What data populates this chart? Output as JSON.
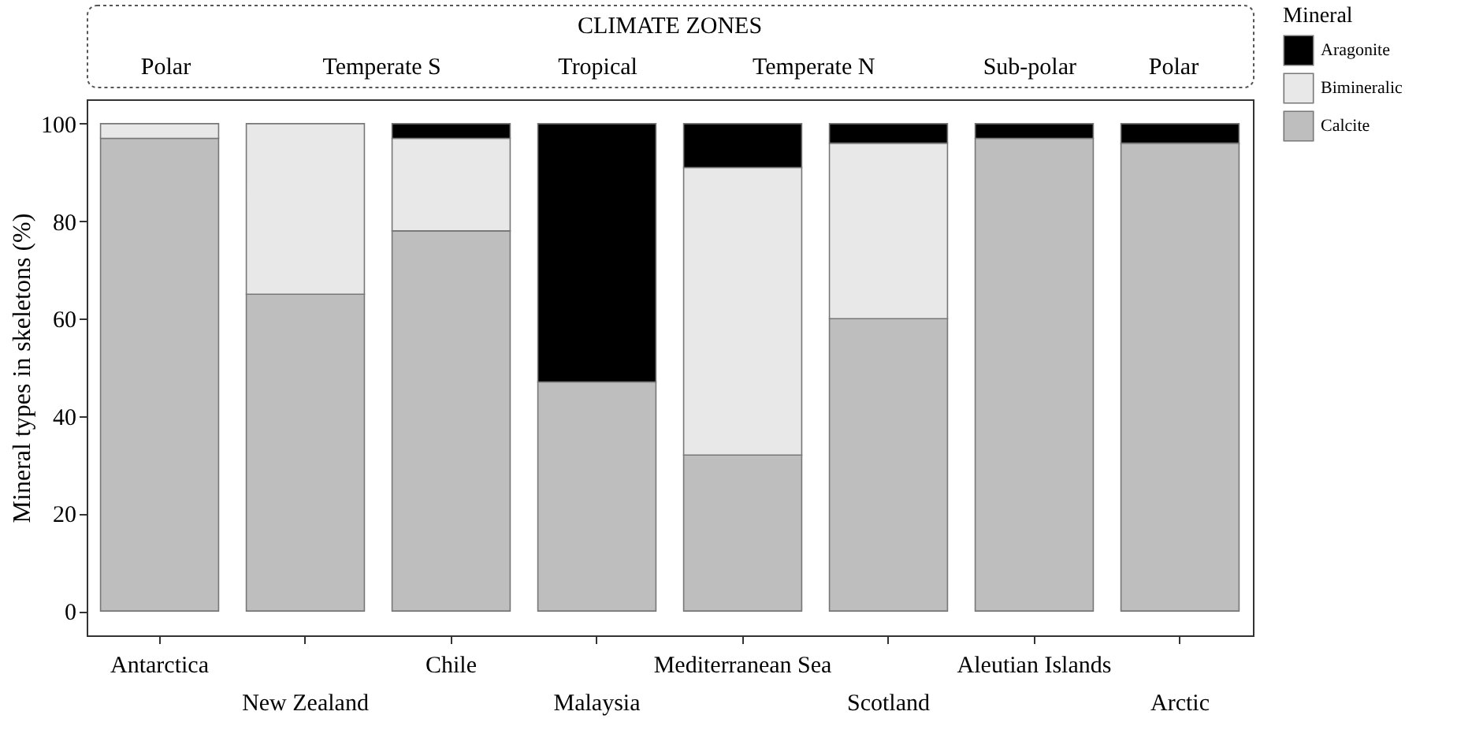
{
  "chart_data": {
    "type": "bar",
    "stacked": true,
    "ylabel": "Mineral types in skeletons (%)",
    "legend_title": "Mineral",
    "legend": "right",
    "grid": false,
    "categories": [
      "Antarctica",
      "New Zealand",
      "Chile",
      "Malaysia",
      "Mediterranean Sea",
      "Scotland",
      "Aleutian Islands",
      "Arctic"
    ],
    "series": [
      {
        "name": "Calcite",
        "color": "#bebebe",
        "values": [
          97,
          65,
          78,
          47,
          32,
          60,
          97,
          96
        ]
      },
      {
        "name": "Bimineralic",
        "color": "#e8e8e8",
        "values": [
          3,
          35,
          19,
          0,
          59,
          36,
          0,
          0
        ]
      },
      {
        "name": "Aragonite",
        "color": "#000000",
        "values": [
          0,
          0,
          3,
          53,
          9,
          4,
          3,
          4
        ]
      }
    ],
    "ylim": [
      -5,
      105
    ],
    "yticks": [
      0,
      20,
      40,
      60,
      80,
      100
    ],
    "annotations": [
      "CLIMATE ZONES",
      "Polar",
      "Temperate S",
      "Tropical",
      "Temperate N",
      "Sub-polar",
      "Polar"
    ]
  }
}
